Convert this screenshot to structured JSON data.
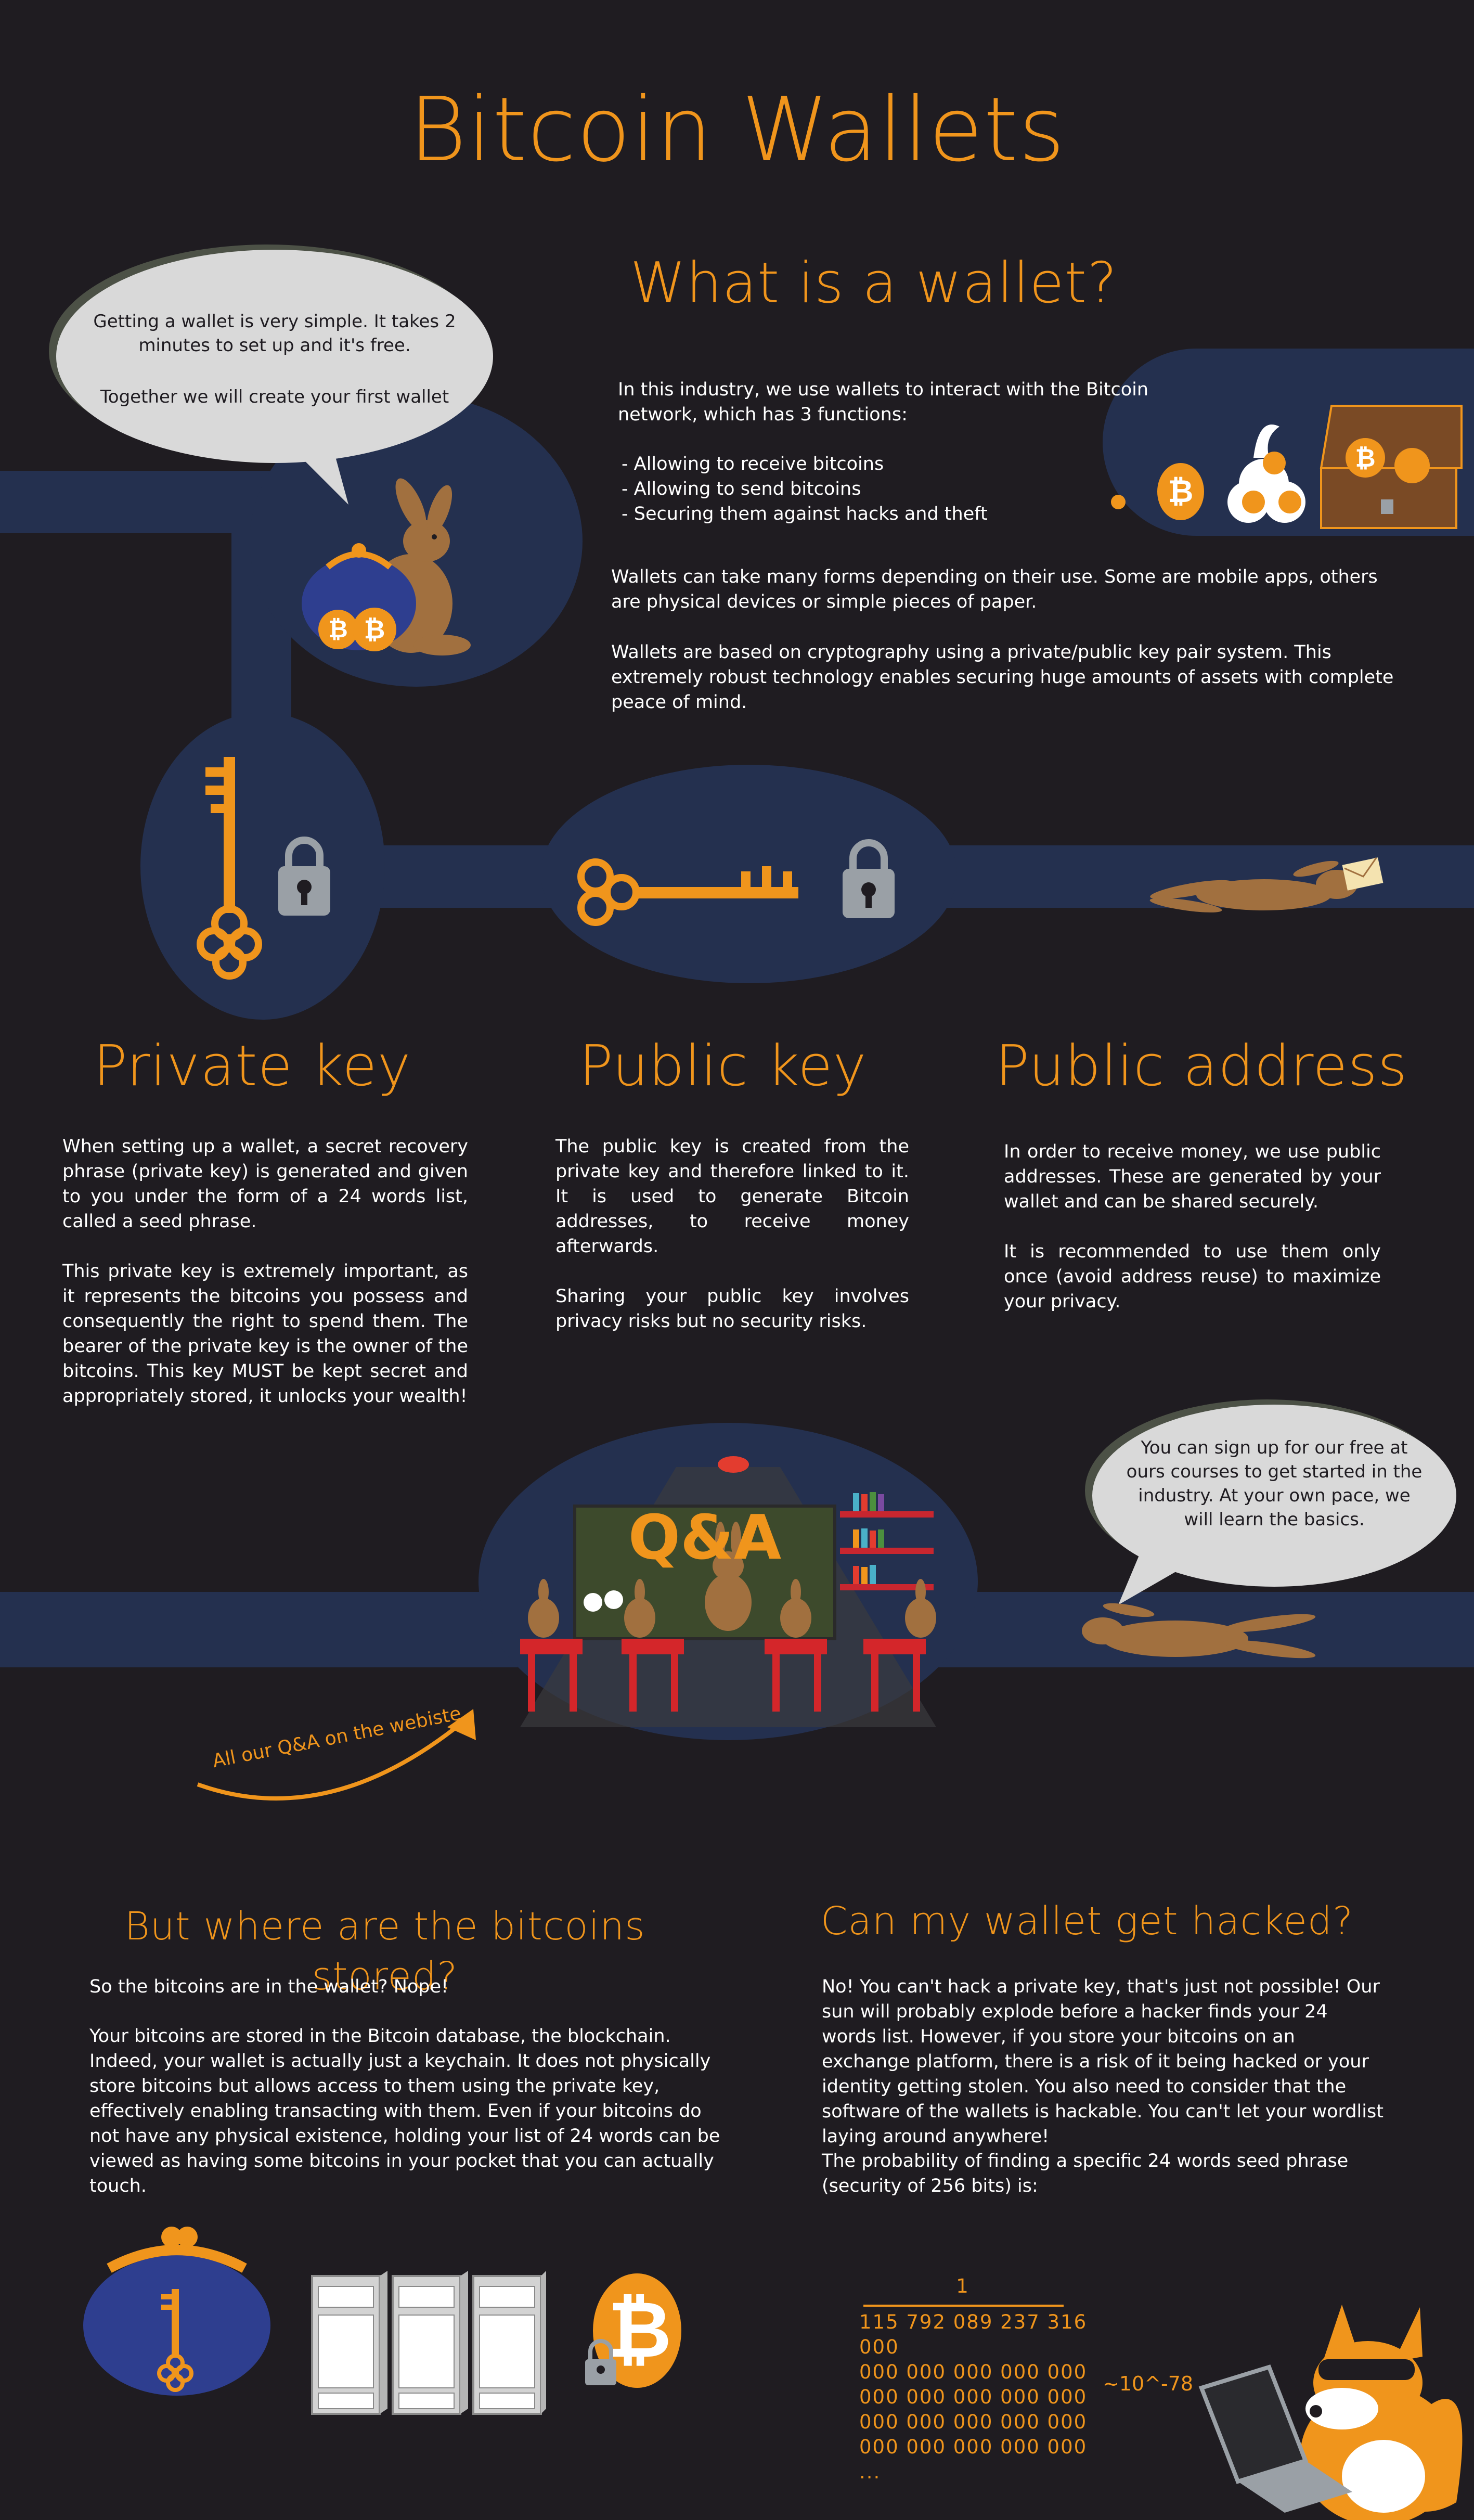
{
  "header": {
    "title": "Bitcoin Wallets"
  },
  "wallet_section": {
    "title": "What is a wallet?",
    "intro": "In this industry, we use wallets to interact with the Bitcoin network, which has 3 functions:",
    "functions": [
      "- Allowing to receive bitcoins",
      "- Allowing to send bitcoins",
      "- Securing them against hacks and theft"
    ],
    "para2": "Wallets can take many forms depending on their use. Some are mobile apps, others are physical devices or simple pieces of paper.",
    "para3": "Wallets are based on cryptography using a private/public key pair system.  This extremely robust technology enables securing huge amounts of assets with complete peace of mind."
  },
  "bubble_top": {
    "line1": "Getting a wallet is very simple. It takes 2 minutes to set up and it's free.",
    "line2": "Together we will create your first wallet"
  },
  "keys": [
    {
      "title": "Private key",
      "paragraphs": [
        "When setting up a wallet, a secret recovery phrase (private key) is generated and given to you under the form of a 24 words list, called a seed phrase.",
        "This private key is extremely important, as it represents the bitcoins you possess and consequently the right to spend them. The bearer of the private key is the owner of the bitcoins. This key MUST be kept secret and appropriately stored, it unlocks your wealth!"
      ]
    },
    {
      "title": "Public key",
      "paragraphs": [
        "The public key is created from the private key and therefore linked to it. It is used to generate Bitcoin addresses, to receive money afterwards.",
        "Sharing your public key involves privacy risks but no security risks."
      ]
    },
    {
      "title": "Public address",
      "paragraphs": [
        "In order to receive money, we use public addresses. These are generated by your wallet and can be shared securely.",
        "It is recommended to use them only once (avoid address reuse) to maximize your privacy."
      ]
    }
  ],
  "qa": {
    "board": "Q&A",
    "arrow_caption": "All our Q&A on the webiste",
    "bubble": "You can sign up for our free at ours courses to get started in the industry. At your own pace, we will learn the basics."
  },
  "stored": {
    "title": "But where are the bitcoins stored?",
    "para1": "So the bitcoins are in the wallet? Nope!",
    "para2": "Your bitcoins are stored in the Bitcoin database, the blockchain. Indeed, your wallet is actually just a keychain. It does not physically store bitcoins but allows access to them using the private key, effectively enabling transacting with them. Even if your bitcoins do not have any physical existence, holding your list of 24 words can be viewed as having some bitcoins in your pocket that you can actually touch."
  },
  "hacked": {
    "title": "Can my wallet get hacked?",
    "para1": "No! You can't hack a private key, that's just not possible! Our sun will probably explode before a hacker finds your 24 words list. However, if you store your bitcoins on an exchange platform, there is a risk of it being hacked or your identity getting stolen. You also need to consider that the software of the wallets is hackable. You can't let your wordlist laying around anywhere!",
    "para2": "The probability of finding a specific 24 words seed phrase (security of 256 bits) is:"
  },
  "probability": {
    "numerator": "1",
    "denominator_rows": [
      "115 792 089 237 316 000",
      "000 000 000 000 000",
      "000 000 000 000 000",
      "000 000 000 000 000",
      "000 000 000 000 000",
      "..."
    ],
    "approx": "~10^-78"
  },
  "colors": {
    "background": "#1f1c21",
    "accent": "#f0951c",
    "navy": "#24304f",
    "bubble": "#d9d9d9"
  }
}
